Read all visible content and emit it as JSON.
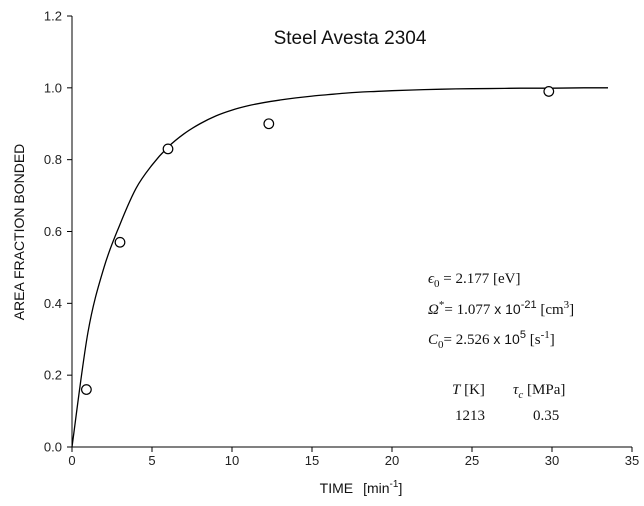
{
  "chart_data": {
    "type": "scatter",
    "title": "Steel Avesta 2304",
    "xlabel": "TIME",
    "xlabel_unit": "[min",
    "xlabel_unit_exp": "-1",
    "xlabel_unit_close": "]",
    "ylabel": "AREA FRACTION BONDED",
    "xlim": [
      0,
      35
    ],
    "ylim": [
      0,
      1.2
    ],
    "x_ticks": [
      "0",
      "5",
      "10",
      "15",
      "20",
      "25",
      "30",
      "35"
    ],
    "y_ticks": [
      "0.0",
      "0.2",
      "0.4",
      "0.6",
      "0.8",
      "1.0",
      "1.2"
    ],
    "grid": false,
    "series": [
      {
        "type": "scatter",
        "marker": "open-circle",
        "x": [
          0.9,
          3.0,
          6.0,
          12.3,
          29.8
        ],
        "y": [
          0.16,
          0.57,
          0.83,
          0.9,
          0.99
        ]
      },
      {
        "type": "line",
        "x": [
          0,
          1,
          2,
          3,
          4,
          5,
          6,
          7,
          8,
          9,
          10,
          11,
          12,
          13,
          14,
          15,
          16,
          17,
          18,
          19,
          20,
          22,
          24,
          26,
          28,
          30,
          32,
          33.5
        ],
        "y": [
          0,
          0.32,
          0.5,
          0.62,
          0.72,
          0.785,
          0.835,
          0.872,
          0.9,
          0.922,
          0.938,
          0.95,
          0.959,
          0.966,
          0.972,
          0.977,
          0.981,
          0.985,
          0.988,
          0.99,
          0.992,
          0.995,
          0.997,
          0.998,
          0.999,
          0.999,
          1.0,
          1.0
        ]
      }
    ]
  },
  "annotations": {
    "eps_sym": "ϵ",
    "eps_sub": "0",
    "eps_val": " = 2.177 [eV]",
    "omega_sym": "Ω",
    "omega_sup": "*",
    "omega_val": "= 1.077",
    "omega_x": " x 10",
    "omega_exp": "-21",
    "omega_unit": " [cm",
    "omega_unit_exp": "3",
    "omega_unit_close": "]",
    "c_sym": "C",
    "c_sub": "0",
    "c_val": "= 2.526",
    "c_x": " x 10",
    "c_exp": "5",
    "c_unit": " [s",
    "c_unit_exp": "-1",
    "c_unit_close": "]",
    "t_head_sym": "T",
    "t_head_unit": " [K]",
    "tau_head_sym": "τ",
    "tau_head_sub": "c",
    "tau_head_unit": " [MPa]",
    "t_value": "1213",
    "tau_value": "0.35"
  }
}
